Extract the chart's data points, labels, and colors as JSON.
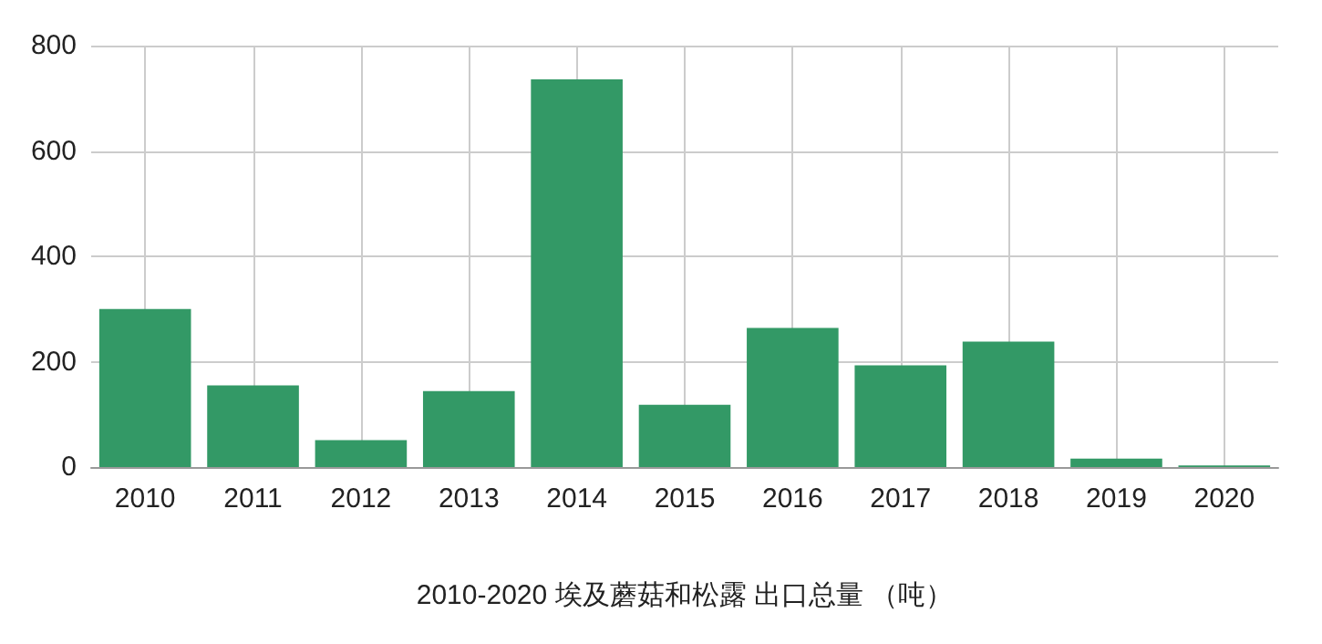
{
  "chart_data": {
    "type": "bar",
    "xlabel": "2010-2020 埃及蘑菇和松露 出口总量 （吨）",
    "categories": [
      "2010",
      "2011",
      "2012",
      "2013",
      "2014",
      "2015",
      "2016",
      "2017",
      "2018",
      "2019",
      "2020"
    ],
    "values": [
      300,
      155,
      51,
      144,
      736,
      118,
      264,
      193,
      238,
      16,
      3
    ],
    "color": "#339966",
    "ylim": [
      0,
      800
    ],
    "yticks": [
      0,
      200,
      400,
      600,
      800
    ],
    "grid": true
  }
}
